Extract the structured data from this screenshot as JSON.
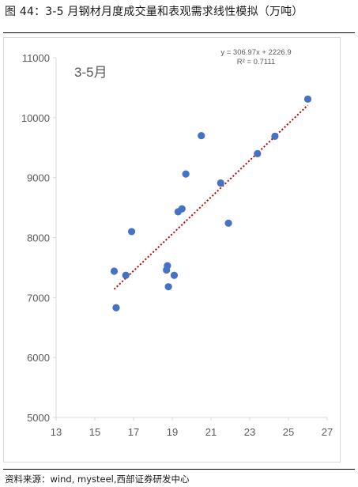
{
  "header": {
    "title": "图 44：3-5 月钢材月度成交量和表观需求线性模拟（万吨）"
  },
  "footer": {
    "source": "资料来源：wind, mysteel,西部证券研发中心"
  },
  "colors": {
    "point": "#4472c4",
    "trendline": "#c00000",
    "axis": "#d9d9d9",
    "text": "#595959"
  },
  "chart_data": {
    "type": "scatter",
    "title": "3-5月",
    "xlabel": "",
    "ylabel": "",
    "xlim": [
      13,
      27
    ],
    "ylim": [
      5000,
      11000
    ],
    "xticks": [
      "13",
      "15",
      "17",
      "19",
      "21",
      "23",
      "25",
      "27"
    ],
    "yticks": [
      "5000",
      "6000",
      "7000",
      "8000",
      "9000",
      "10000",
      "11000"
    ],
    "grid": false,
    "points": [
      {
        "x": 16.0,
        "y": 7440
      },
      {
        "x": 16.1,
        "y": 6830
      },
      {
        "x": 16.6,
        "y": 7370
      },
      {
        "x": 16.9,
        "y": 8100
      },
      {
        "x": 18.7,
        "y": 7460
      },
      {
        "x": 18.75,
        "y": 7530
      },
      {
        "x": 18.8,
        "y": 7180
      },
      {
        "x": 19.1,
        "y": 7370
      },
      {
        "x": 19.3,
        "y": 8430
      },
      {
        "x": 19.5,
        "y": 8480
      },
      {
        "x": 19.7,
        "y": 9060
      },
      {
        "x": 20.5,
        "y": 9700
      },
      {
        "x": 21.5,
        "y": 8910
      },
      {
        "x": 21.9,
        "y": 8240
      },
      {
        "x": 23.4,
        "y": 9400
      },
      {
        "x": 24.3,
        "y": 9690
      },
      {
        "x": 26.0,
        "y": 10310
      }
    ],
    "trendline": {
      "type": "linear",
      "slope": 306.97,
      "intercept": 2226.9,
      "x_range": [
        16.0,
        26.0
      ],
      "equation": "y = 306.97x + 2226.9",
      "r_squared": "R² = 0.7111"
    }
  }
}
